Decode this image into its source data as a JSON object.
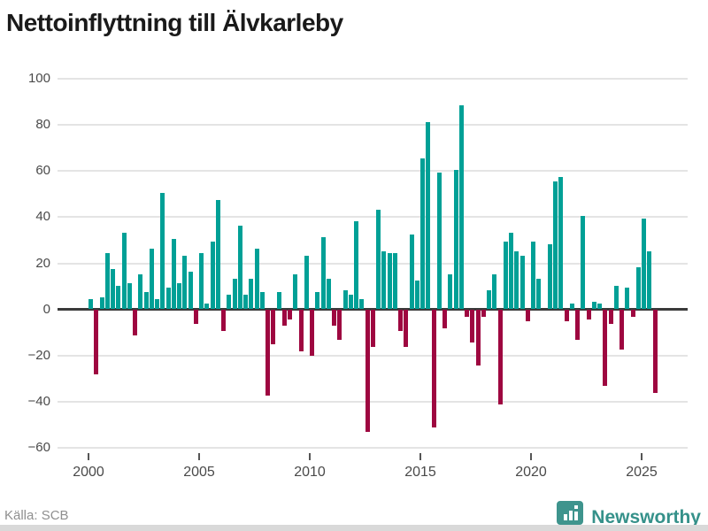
{
  "title": "Nettoinflyttning till Älvkarleby",
  "footer": {
    "source_label": "Källa: SCB"
  },
  "brand": {
    "name": "Newsworthy"
  },
  "colors": {
    "positive": "#00a096",
    "negative": "#9e0740",
    "grid": "#e4e4e4",
    "zero_line": "#3a3a3a",
    "brand_teal": "#35918a"
  },
  "chart_data": {
    "type": "bar",
    "title": "Nettoinflyttning till Älvkarleby",
    "frequency": "quarterly",
    "x_start": "2000 Q1",
    "x_end": "2025 Q3",
    "x_tick_labels": [
      "2000",
      "2005",
      "2010",
      "2015",
      "2020",
      "2025"
    ],
    "y_ticks": [
      100,
      80,
      60,
      40,
      20,
      0,
      -20,
      -40,
      -60
    ],
    "y_tick_labels": [
      "100",
      "80",
      "60",
      "40",
      "20",
      "0",
      "−20",
      "−40",
      "−60"
    ],
    "ylim": [
      -60,
      100
    ],
    "grid": true,
    "series": [
      {
        "name": "Nettoinflyttning",
        "values": [
          4,
          -28,
          5,
          24,
          17,
          10,
          33,
          11,
          -11,
          15,
          7,
          26,
          4,
          50,
          9,
          30,
          11,
          23,
          16,
          -6,
          24,
          2,
          29,
          47,
          -9,
          6,
          13,
          36,
          6,
          13,
          26,
          7,
          -37,
          -15,
          7,
          -7,
          -4,
          15,
          -18,
          23,
          -20,
          7,
          31,
          13,
          -7,
          -13,
          8,
          6,
          38,
          4,
          -53,
          -16,
          43,
          25,
          24,
          24,
          -9,
          -16,
          32,
          12,
          65,
          81,
          -51,
          59,
          -8,
          15,
          60,
          88,
          -3,
          -14,
          -24,
          -3,
          8,
          15,
          -41,
          29,
          33,
          25,
          23,
          -5,
          29,
          13,
          0,
          28,
          55,
          57,
          -5,
          2,
          -13,
          40,
          -4,
          3,
          2,
          -33,
          -6,
          10,
          -17,
          9,
          -3,
          18,
          39,
          25,
          -36
        ]
      }
    ]
  }
}
